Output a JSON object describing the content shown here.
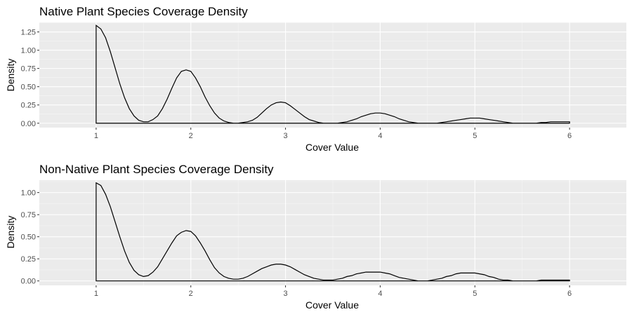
{
  "chart_data": [
    {
      "type": "area",
      "title": "Native Plant Species Coverage Density",
      "xlabel": "Cover Value",
      "ylabel": "Density",
      "xlim": [
        0.4,
        6.6
      ],
      "ylim": [
        -0.06,
        1.38
      ],
      "x_ticks": [
        1,
        2,
        3,
        4,
        5,
        6
      ],
      "y_ticks": [
        0.0,
        0.25,
        0.5,
        0.75,
        1.0,
        1.25
      ],
      "y_tick_labels": [
        "0.00",
        "0.25",
        "0.50",
        "0.75",
        "1.00",
        "1.25"
      ],
      "grid": true,
      "series": [
        {
          "x": [
            1.0,
            1.05,
            1.1,
            1.15,
            1.2,
            1.25,
            1.3,
            1.35,
            1.4,
            1.45,
            1.5,
            1.55,
            1.6,
            1.65,
            1.7,
            1.75,
            1.8,
            1.85,
            1.9,
            1.95,
            2.0,
            2.05,
            2.1,
            2.15,
            2.2,
            2.25,
            2.3,
            2.35,
            2.4,
            2.45,
            2.5,
            2.55,
            2.6,
            2.65,
            2.7,
            2.75,
            2.8,
            2.85,
            2.9,
            2.95,
            3.0,
            3.05,
            3.1,
            3.15,
            3.2,
            3.25,
            3.3,
            3.35,
            3.4,
            3.45,
            3.5,
            3.55,
            3.6,
            3.65,
            3.7,
            3.75,
            3.8,
            3.85,
            3.9,
            3.95,
            4.0,
            4.05,
            4.1,
            4.15,
            4.2,
            4.25,
            4.3,
            4.35,
            4.4,
            4.45,
            4.5,
            4.55,
            4.6,
            4.65,
            4.7,
            4.75,
            4.8,
            4.85,
            4.9,
            4.95,
            5.0,
            5.05,
            5.1,
            5.15,
            5.2,
            5.25,
            5.3,
            5.35,
            5.4,
            5.45,
            5.5,
            5.55,
            5.6,
            5.65,
            5.7,
            5.75,
            5.8,
            5.85,
            5.9,
            5.95,
            6.0
          ],
          "y": [
            1.34,
            1.29,
            1.17,
            0.98,
            0.76,
            0.54,
            0.35,
            0.2,
            0.1,
            0.04,
            0.02,
            0.02,
            0.05,
            0.1,
            0.2,
            0.33,
            0.48,
            0.62,
            0.71,
            0.73,
            0.71,
            0.62,
            0.5,
            0.36,
            0.24,
            0.14,
            0.07,
            0.03,
            0.01,
            0.0,
            0.0,
            0.01,
            0.02,
            0.04,
            0.08,
            0.14,
            0.2,
            0.25,
            0.28,
            0.29,
            0.28,
            0.24,
            0.19,
            0.14,
            0.09,
            0.05,
            0.03,
            0.01,
            0.0,
            0.0,
            0.0,
            0.0,
            0.01,
            0.02,
            0.04,
            0.06,
            0.09,
            0.11,
            0.13,
            0.14,
            0.14,
            0.13,
            0.11,
            0.09,
            0.06,
            0.04,
            0.02,
            0.01,
            0.0,
            0.0,
            0.0,
            0.0,
            0.0,
            0.01,
            0.02,
            0.03,
            0.04,
            0.05,
            0.06,
            0.07,
            0.07,
            0.07,
            0.06,
            0.05,
            0.04,
            0.03,
            0.02,
            0.01,
            0.0,
            0.0,
            0.0,
            0.0,
            0.0,
            0.0,
            0.01,
            0.01,
            0.02,
            0.02,
            0.02,
            0.02,
            0.02
          ]
        }
      ]
    },
    {
      "type": "area",
      "title": "Non-Native Plant Species Coverage Density",
      "xlabel": "Cover Value",
      "ylabel": "Density",
      "xlim": [
        0.4,
        6.6
      ],
      "ylim": [
        -0.05,
        1.14
      ],
      "x_ticks": [
        1,
        2,
        3,
        4,
        5,
        6
      ],
      "y_ticks": [
        0.0,
        0.25,
        0.5,
        0.75,
        1.0
      ],
      "y_tick_labels": [
        "0.00",
        "0.25",
        "0.50",
        "0.75",
        "1.00"
      ],
      "grid": true,
      "series": [
        {
          "x": [
            1.0,
            1.05,
            1.1,
            1.15,
            1.2,
            1.25,
            1.3,
            1.35,
            1.4,
            1.45,
            1.5,
            1.55,
            1.6,
            1.65,
            1.7,
            1.75,
            1.8,
            1.85,
            1.9,
            1.95,
            2.0,
            2.05,
            2.1,
            2.15,
            2.2,
            2.25,
            2.3,
            2.35,
            2.4,
            2.45,
            2.5,
            2.55,
            2.6,
            2.65,
            2.7,
            2.75,
            2.8,
            2.85,
            2.9,
            2.95,
            3.0,
            3.05,
            3.1,
            3.15,
            3.2,
            3.25,
            3.3,
            3.35,
            3.4,
            3.45,
            3.5,
            3.55,
            3.6,
            3.65,
            3.7,
            3.75,
            3.8,
            3.85,
            3.9,
            3.95,
            4.0,
            4.05,
            4.1,
            4.15,
            4.2,
            4.25,
            4.3,
            4.35,
            4.4,
            4.45,
            4.5,
            4.55,
            4.6,
            4.65,
            4.7,
            4.75,
            4.8,
            4.85,
            4.9,
            4.95,
            5.0,
            5.05,
            5.1,
            5.15,
            5.2,
            5.25,
            5.3,
            5.35,
            5.4,
            5.45,
            5.5,
            5.55,
            5.6,
            5.65,
            5.7,
            5.75,
            5.8,
            5.85,
            5.9,
            5.95,
            6.0
          ],
          "y": [
            1.11,
            1.08,
            0.98,
            0.84,
            0.67,
            0.5,
            0.34,
            0.21,
            0.12,
            0.07,
            0.05,
            0.06,
            0.1,
            0.16,
            0.25,
            0.34,
            0.43,
            0.51,
            0.55,
            0.57,
            0.56,
            0.51,
            0.43,
            0.34,
            0.24,
            0.15,
            0.09,
            0.05,
            0.03,
            0.02,
            0.02,
            0.03,
            0.05,
            0.08,
            0.11,
            0.14,
            0.16,
            0.18,
            0.19,
            0.19,
            0.18,
            0.16,
            0.13,
            0.1,
            0.07,
            0.05,
            0.03,
            0.02,
            0.01,
            0.01,
            0.01,
            0.02,
            0.03,
            0.05,
            0.06,
            0.08,
            0.09,
            0.1,
            0.1,
            0.1,
            0.1,
            0.09,
            0.08,
            0.06,
            0.04,
            0.03,
            0.02,
            0.01,
            0.0,
            0.0,
            0.0,
            0.01,
            0.02,
            0.03,
            0.05,
            0.06,
            0.08,
            0.09,
            0.09,
            0.09,
            0.09,
            0.08,
            0.07,
            0.05,
            0.04,
            0.02,
            0.01,
            0.01,
            0.0,
            0.0,
            0.0,
            0.0,
            0.0,
            0.0,
            0.01,
            0.01,
            0.01,
            0.01,
            0.01,
            0.01,
            0.01
          ]
        }
      ]
    }
  ]
}
